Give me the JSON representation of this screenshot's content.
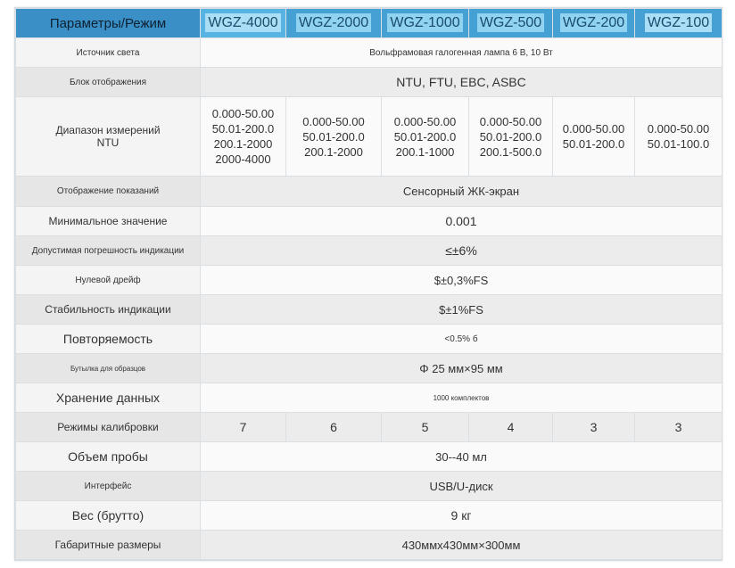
{
  "header": {
    "param_label": "Параметры/Режим",
    "models": [
      "WGZ-4000",
      "WGZ-2000",
      "WGZ-1000",
      "WGZ-500",
      "WGZ-200",
      "WGZ-100"
    ]
  },
  "rows": {
    "light_source": {
      "label": "Источник света",
      "value": "Вольфрамовая галогенная лампа 6 В, 10 Вт"
    },
    "display_unit": {
      "label": "Блок отображения",
      "value": "NTU, FTU, EBC, ASBC"
    },
    "range": {
      "label_line1": "Диапазон измерений",
      "label_line2": "NTU",
      "values": [
        [
          "0.000-50.00",
          "50.01-200.0",
          "200.1-2000",
          "2000-4000"
        ],
        [
          "0.000-50.00",
          "50.01-200.0",
          "200.1-2000"
        ],
        [
          "0.000-50.00",
          "50.01-200.0",
          "200.1-1000"
        ],
        [
          "0.000-50.00",
          "50.01-200.0",
          "200.1-500.0"
        ],
        [
          "0.000-50.00",
          "50.01-200.0"
        ],
        [
          "0.000-50.00",
          "50.01-100.0"
        ]
      ]
    },
    "display": {
      "label": "Отображение показаний",
      "value": "Сенсорный ЖК-экран"
    },
    "min_value": {
      "label": "Минимальное значение",
      "value": "0.001"
    },
    "tolerance": {
      "label": "Допустимая погрешность индикации",
      "value": "≤±6%"
    },
    "zero_drift": {
      "label": "Нулевой дрейф",
      "value": "$±0,3%FS"
    },
    "stability": {
      "label": "Стабильность индикации",
      "value": "$±1%FS"
    },
    "repeatability": {
      "label": "Повторяемость",
      "value": "<0.5% б"
    },
    "sample_bottle": {
      "label": "Бутылка для образцов",
      "value": "Φ 25 мм×95 мм"
    },
    "storage": {
      "label": "Хранение данных",
      "value": "1000 комплектов"
    },
    "calibration": {
      "label": "Режимы калибровки",
      "values": [
        "7",
        "6",
        "5",
        "4",
        "3",
        "3"
      ]
    },
    "sample_volume": {
      "label": "Объем пробы",
      "value": "30--40 мл"
    },
    "interface": {
      "label": "Интерфейс",
      "value": "USB/U-диск"
    },
    "weight": {
      "label": "Вес (брутто)",
      "value": "9 кг"
    },
    "dimensions": {
      "label": "Габаритные размеры",
      "value": "430ммx430мм×300мм"
    }
  },
  "colors": {
    "header_bg": "#4a9fd0",
    "highlight": "#a9def6",
    "label_bg": "#f4f4f4",
    "alt_bg": "#e6e6e6"
  }
}
